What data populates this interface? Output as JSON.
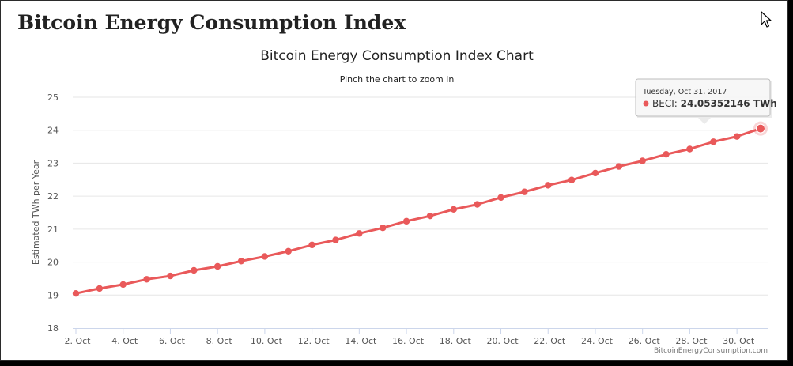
{
  "page": {
    "title": "Bitcoin Energy Consumption Index"
  },
  "chart_data": {
    "type": "line",
    "title": "Bitcoin Energy Consumption Index Chart",
    "subtitle": "Pinch the chart to zoom in",
    "ylabel": "Estimated TWh per Year",
    "xlabel": "",
    "ylim": [
      18,
      25
    ],
    "yticks": [
      18,
      19,
      20,
      21,
      22,
      23,
      24,
      25
    ],
    "xlim": [
      2,
      31.6
    ],
    "xticks": [
      {
        "value": 2,
        "label": "2. Oct"
      },
      {
        "value": 4,
        "label": "4. Oct"
      },
      {
        "value": 6,
        "label": "6. Oct"
      },
      {
        "value": 8,
        "label": "8. Oct"
      },
      {
        "value": 10,
        "label": "10. Oct"
      },
      {
        "value": 12,
        "label": "12. Oct"
      },
      {
        "value": 14,
        "label": "14. Oct"
      },
      {
        "value": 16,
        "label": "16. Oct"
      },
      {
        "value": 18,
        "label": "18. Oct"
      },
      {
        "value": 20,
        "label": "20. Oct"
      },
      {
        "value": 22,
        "label": "22. Oct"
      },
      {
        "value": 24,
        "label": "24. Oct"
      },
      {
        "value": 26,
        "label": "26. Oct"
      },
      {
        "value": 28,
        "label": "28. Oct"
      },
      {
        "value": 30,
        "label": "30. Oct"
      }
    ],
    "grid": true,
    "legend": "none",
    "credit": "BitcoinEnergyConsumption.com",
    "series": [
      {
        "name": "BECI",
        "color": "#e9595a",
        "x": [
          2,
          3,
          4,
          5,
          6,
          7,
          8,
          9,
          10,
          11,
          12,
          13,
          14,
          15,
          16,
          17,
          18,
          19,
          20,
          21,
          22,
          23,
          24,
          25,
          26,
          27,
          28,
          29,
          30,
          31
        ],
        "values": [
          19.05,
          19.2,
          19.32,
          19.48,
          19.58,
          19.75,
          19.87,
          20.03,
          20.17,
          20.33,
          20.52,
          20.67,
          20.87,
          21.04,
          21.24,
          21.4,
          21.6,
          21.75,
          21.96,
          22.13,
          22.33,
          22.49,
          22.7,
          22.9,
          23.07,
          23.27,
          23.43,
          23.65,
          23.81,
          24.05
        ]
      }
    ],
    "tooltip": {
      "date": "Tuesday, Oct 31, 2017",
      "series_label": "BECI: ",
      "value_text": "24.05352146 TWh"
    }
  }
}
